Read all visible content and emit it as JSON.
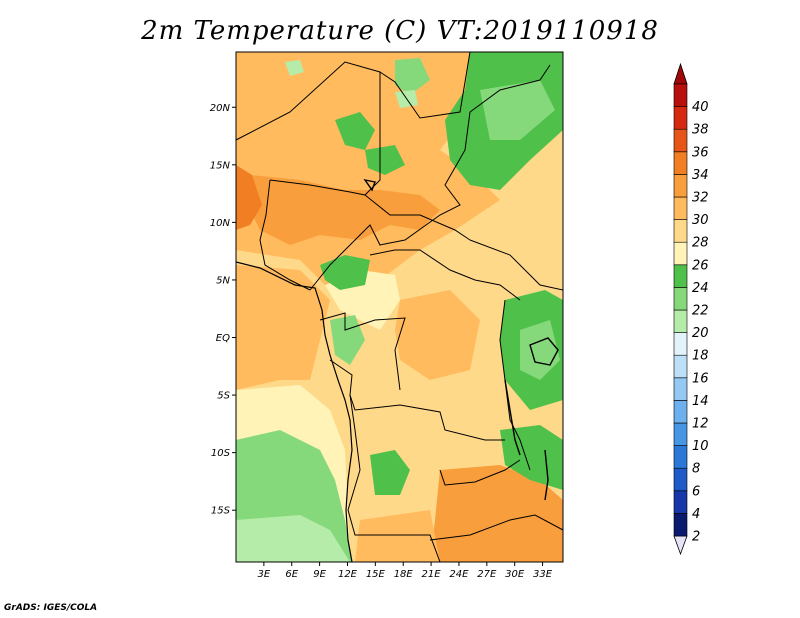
{
  "title": "2m Temperature (C) VT:2019110918",
  "credit": "GrADS: IGES/COLA",
  "lat_labels": [
    "20N",
    "15N",
    "10N",
    "5N",
    "EQ",
    "5S",
    "10S",
    "15S"
  ],
  "lat_values": [
    20,
    15,
    10,
    5,
    0,
    -5,
    -10,
    -15
  ],
  "lon_labels": [
    "3E",
    "6E",
    "9E",
    "12E",
    "15E",
    "18E",
    "21E",
    "24E",
    "27E",
    "30E",
    "33E"
  ],
  "lon_values": [
    3,
    6,
    9,
    12,
    15,
    18,
    21,
    24,
    27,
    30,
    33
  ],
  "colorbar": {
    "labels": [
      "2",
      "4",
      "6",
      "8",
      "10",
      "12",
      "14",
      "16",
      "18",
      "20",
      "22",
      "24",
      "26",
      "28",
      "30",
      "32",
      "34",
      "36",
      "38",
      "40"
    ],
    "colors": [
      "#0a1a6e",
      "#1537a8",
      "#1e5bc8",
      "#2c78d8",
      "#4796e4",
      "#6cb0ee",
      "#94c9f4",
      "#bde0f8",
      "#e2f4fa",
      "#b6ecaa",
      "#86d97a",
      "#4fc04a",
      "#fff3b8",
      "#ffd98a",
      "#ffbb5e",
      "#f99e3c",
      "#f27e24",
      "#e65618",
      "#d52a10",
      "#b8100c"
    ]
  },
  "map_regions": {
    "base": "#ffd98a",
    "warm_30_32": "#ffbb5e",
    "hot_32_34": "#f99e3c",
    "very_hot_34_36": "#f27e24",
    "green_20_22": "#86d97a",
    "green_22_24": "#4fc04a",
    "light_green_18_20": "#b6ecaa",
    "light_24_26": "#fff3b8"
  }
}
